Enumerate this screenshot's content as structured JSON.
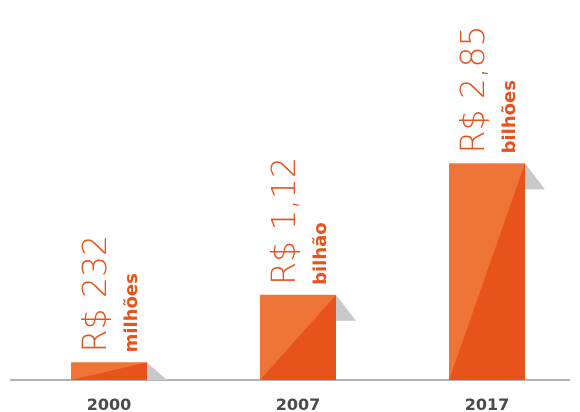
{
  "chart_data": {
    "type": "bar",
    "categories": [
      "2000",
      "2007",
      "2017"
    ],
    "values": [
      232000000,
      1120000000,
      2850000000
    ],
    "value_labels": [
      [
        "R$ 232",
        "milhões"
      ],
      [
        "R$ 1,12",
        "bilhão"
      ],
      [
        "R$ 2,85",
        "bilhões"
      ]
    ],
    "color": "#e8531c",
    "ylim": [
      0,
      3000000000
    ]
  }
}
